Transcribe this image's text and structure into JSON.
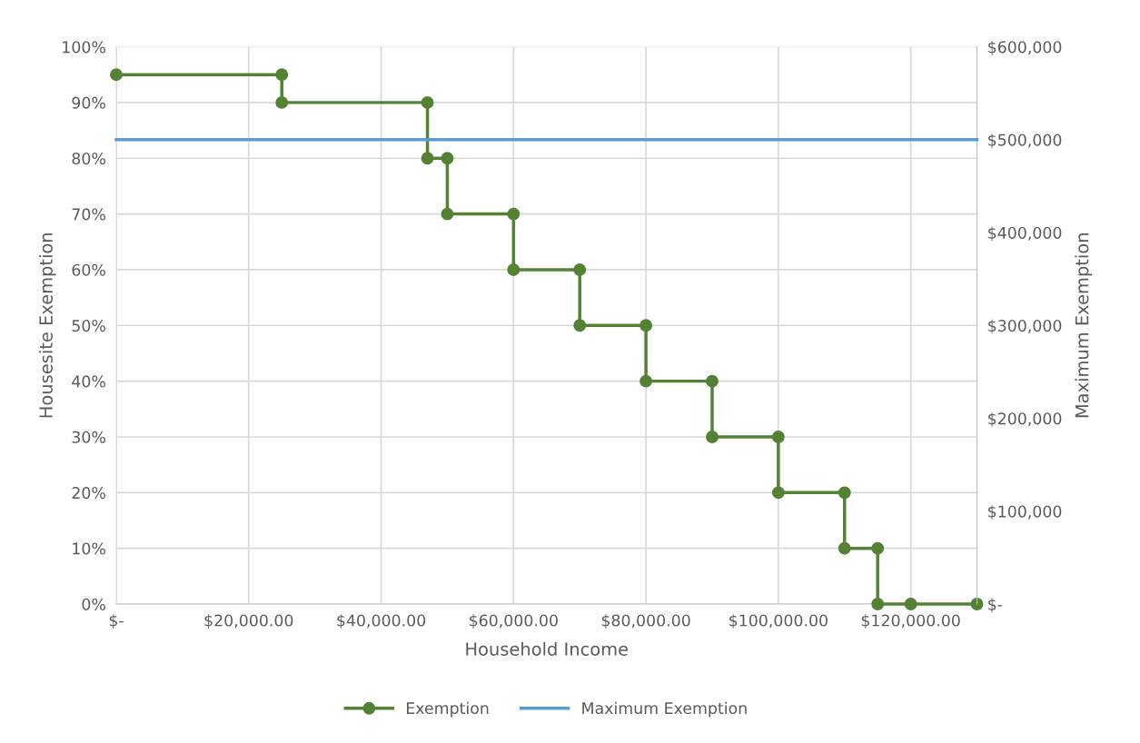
{
  "chart_data": {
    "type": "line",
    "xlabel": "Household Income",
    "ylabel": "Housesite Exemption",
    "y2label": "Maximum Exemption",
    "series": [
      {
        "name": "Exemption",
        "color": "#548235",
        "marker": "circle",
        "x": [
          0,
          25000,
          25000,
          47000,
          47000,
          50000,
          50000,
          60000,
          60000,
          70000,
          70000,
          80000,
          80000,
          90000,
          90000,
          100000,
          100000,
          110000,
          110000,
          115000,
          115000,
          120000,
          130000
        ],
        "values": [
          95,
          95,
          90,
          90,
          80,
          80,
          70,
          70,
          60,
          60,
          50,
          50,
          40,
          40,
          30,
          30,
          20,
          20,
          10,
          10,
          0,
          0,
          0
        ]
      },
      {
        "name": "Maximum Exemption",
        "color": "#5b9bd5",
        "marker": "none",
        "axis": "y2",
        "x": [
          0,
          130000
        ],
        "values": [
          500000,
          500000
        ]
      }
    ],
    "xlim": [
      0,
      130000
    ],
    "xticks": [
      {
        "value": 0,
        "label": "$-"
      },
      {
        "value": 20000,
        "label": "$20,000.00"
      },
      {
        "value": 40000,
        "label": "$40,000.00"
      },
      {
        "value": 60000,
        "label": "$60,000.00"
      },
      {
        "value": 80000,
        "label": "$80,000.00"
      },
      {
        "value": 100000,
        "label": "$100,000.00"
      },
      {
        "value": 120000,
        "label": "$120,000.00"
      }
    ],
    "ylim": [
      0,
      100
    ],
    "yticks": [
      {
        "value": 0,
        "label": "0%"
      },
      {
        "value": 10,
        "label": "10%"
      },
      {
        "value": 20,
        "label": "20%"
      },
      {
        "value": 30,
        "label": "30%"
      },
      {
        "value": 40,
        "label": "40%"
      },
      {
        "value": 50,
        "label": "50%"
      },
      {
        "value": 60,
        "label": "60%"
      },
      {
        "value": 70,
        "label": "70%"
      },
      {
        "value": 80,
        "label": "80%"
      },
      {
        "value": 90,
        "label": "90%"
      },
      {
        "value": 100,
        "label": "100%"
      }
    ],
    "y2lim": [
      0,
      600000
    ],
    "y2ticks": [
      {
        "value": 0,
        "label": "$-"
      },
      {
        "value": 100000,
        "label": "$100,000"
      },
      {
        "value": 200000,
        "label": "$200,000"
      },
      {
        "value": 300000,
        "label": "$300,000"
      },
      {
        "value": 400000,
        "label": "$400,000"
      },
      {
        "value": 500000,
        "label": "$500,000"
      },
      {
        "value": 600000,
        "label": "$600,000"
      }
    ],
    "grid": true,
    "legend": "bottom"
  }
}
